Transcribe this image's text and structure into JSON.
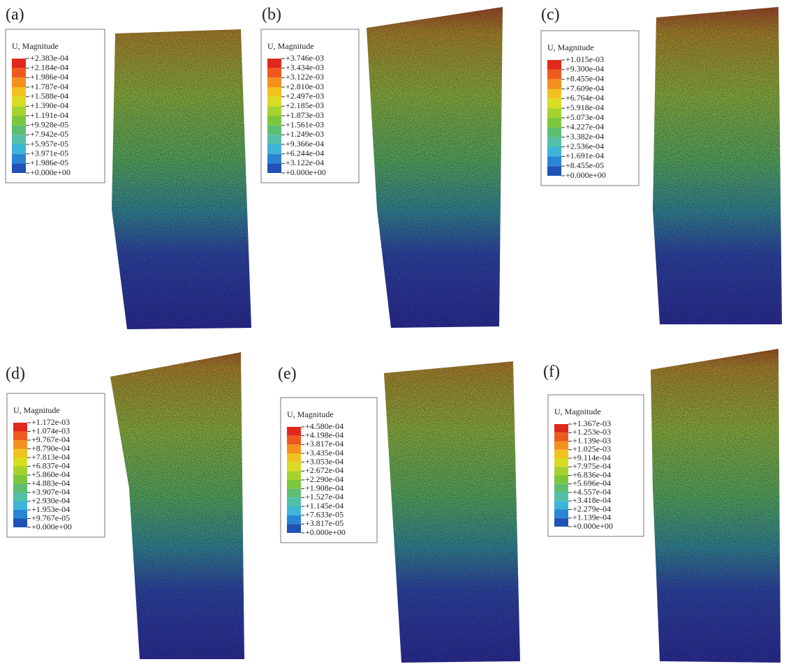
{
  "panels": [
    {
      "label": "(a)",
      "legend_title": "U, Magnitude",
      "legend_values": [
        "+2.383e-04",
        "+2.184e-04",
        "+1.986e-04",
        "+1.787e-04",
        "+1.588e-04",
        "+1.390e-04",
        "+1.191e-04",
        "+9.928e-05",
        "+7.942e-05",
        "+5.957e-05",
        "+3.971e-05",
        "+1.986e-05",
        "+0.000e+00"
      ]
    },
    {
      "label": "(b)",
      "legend_title": "U, Magnitude",
      "legend_values": [
        "+3.746e-03",
        "+3.434e-03",
        "+3.122e-03",
        "+2.810e-03",
        "+2.497e-03",
        "+2.185e-03",
        "+1.873e-03",
        "+1.561e-03",
        "+1.249e-03",
        "+9.366e-04",
        "+6.244e-04",
        "+3.122e-04",
        "+0.000e+00"
      ]
    },
    {
      "label": "(c)",
      "legend_title": "U, Magnitude",
      "legend_values": [
        "+1.015e-03",
        "+9.300e-04",
        "+8.455e-04",
        "+7.609e-04",
        "+6.764e-04",
        "+5.918e-04",
        "+5.073e-04",
        "+4.227e-04",
        "+3.382e-04",
        "+2.536e-04",
        "+1.691e-04",
        "+8.455e-05",
        "+0.000e+00"
      ]
    },
    {
      "label": "(d)",
      "legend_title": "U, Magnitude",
      "legend_values": [
        "+1.172e-03",
        "+1.074e-03",
        "+9.767e-04",
        "+8.790e-04",
        "+7.813e-04",
        "+6.837e-04",
        "+5.860e-04",
        "+4.883e-04",
        "+3.907e-04",
        "+2.930e-04",
        "+1.953e-04",
        "+9.767e-05",
        "+0.000e+00"
      ]
    },
    {
      "label": "(e)",
      "legend_title": "U, Magnitude",
      "legend_values": [
        "+4.580e-04",
        "+4.198e-04",
        "+3.817e-04",
        "+3.435e-04",
        "+3.053e-04",
        "+2.672e-04",
        "+2.290e-04",
        "+1.908e-04",
        "+1.527e-04",
        "+1.145e-04",
        "+7.633e-05",
        "+3.817e-05",
        "+0.000e+00"
      ]
    },
    {
      "label": "(f)",
      "legend_title": "U, Magnitude",
      "legend_values": [
        "+1.367e-03",
        "+1.253e-03",
        "+1.139e-03",
        "+1.025e-03",
        "+9.114e-04",
        "+7.975e-04",
        "+6.836e-04",
        "+5.696e-04",
        "+4.557e-04",
        "+3.418e-04",
        "+2.279e-04",
        "+1.139e-04",
        "+0.000e+00"
      ]
    }
  ]
}
